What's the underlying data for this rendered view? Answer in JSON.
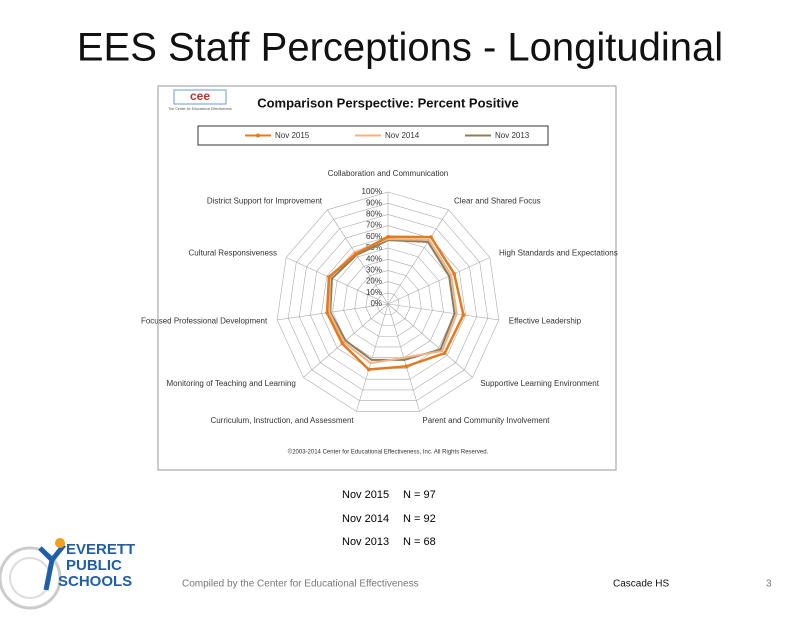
{
  "slide": {
    "title": "EES Staff Perceptions - Longitudinal",
    "logo_text": "cee",
    "logo_caption": "The Center for Educational Effectiveness",
    "copyright": "©2003-2014 Center for Educational Effectiveness, Inc. All Rights Reserved.",
    "sample_sizes": [
      {
        "period": "Nov 2015",
        "n": "N = 97"
      },
      {
        "period": "Nov 2014",
        "n": "N = 92"
      },
      {
        "period": "Nov 2013",
        "n": "N = 68"
      }
    ],
    "district": [
      "EVERETT",
      "PUBLIC",
      "SCHOOLS"
    ],
    "footer": "Compiled by the Center for Educational Effectiveness",
    "school": "Cascade HS",
    "page_number": "3"
  },
  "chart_data": {
    "type": "radar",
    "title": "Comparison Perspective: Percent Positive",
    "categories": [
      "Collaboration and Communication",
      "Clear and Shared Focus",
      "High Standards and Expectations",
      "Effective Leadership",
      "Supportive Learning Environment",
      "Parent and Community Involvement",
      "Curriculum, Instruction, and Assessment",
      "Monitoring of Teaching and Learning",
      "Focused Professional Development",
      "Cultural Responsiveness",
      "District Support for Improvement"
    ],
    "series": [
      {
        "name": "Nov 2015",
        "color": "#e07b20",
        "values": [
          60,
          71,
          65,
          68,
          67,
          58,
          61,
          54,
          55,
          58,
          53
        ]
      },
      {
        "name": "Nov 2014",
        "color": "#f4b183",
        "values": [
          58,
          68,
          62,
          62,
          64,
          50,
          55,
          52,
          53,
          57,
          55
        ]
      },
      {
        "name": "Nov 2013",
        "color": "#8b7d5a",
        "values": [
          57,
          66,
          60,
          60,
          62,
          52,
          52,
          50,
          52,
          55,
          52
        ]
      }
    ],
    "ylim": [
      0,
      100
    ],
    "yticks": [
      {
        "value": 0,
        "label": "0%"
      },
      {
        "value": 10,
        "label": "10%"
      },
      {
        "value": 20,
        "label": "20%"
      },
      {
        "value": 30,
        "label": "30%"
      },
      {
        "value": 40,
        "label": "40%"
      },
      {
        "value": 50,
        "label": "50%"
      },
      {
        "value": 60,
        "label": "60%"
      },
      {
        "value": 70,
        "label": "70%"
      },
      {
        "value": 80,
        "label": "80%"
      },
      {
        "value": 90,
        "label": "90%"
      },
      {
        "value": 100,
        "label": "100%"
      }
    ],
    "grid": true,
    "legend": "top"
  }
}
